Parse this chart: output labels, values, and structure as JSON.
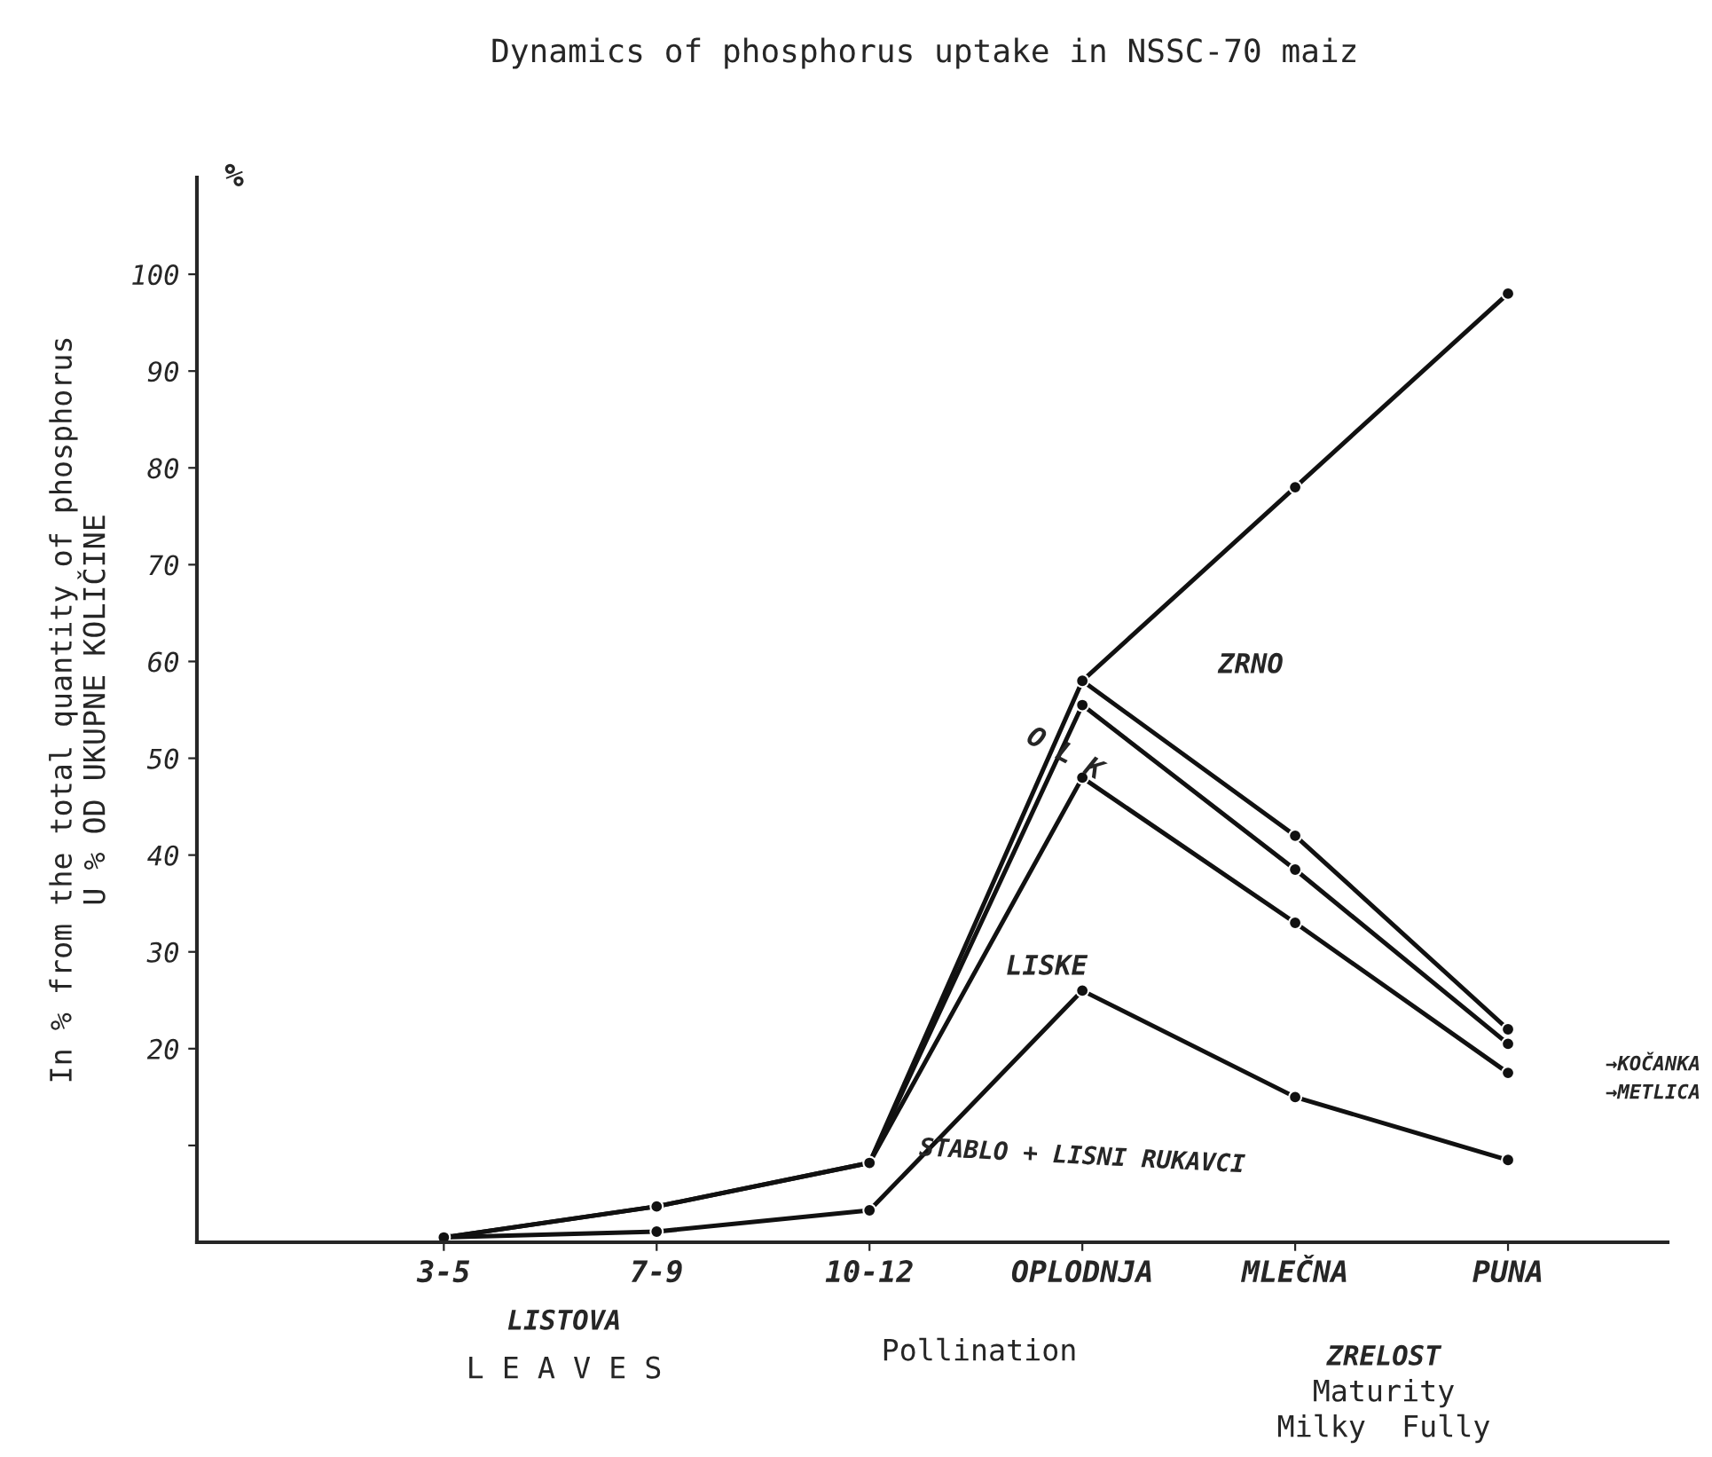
{
  "chart_data": {
    "type": "line",
    "title": "Dynamics of phosphorus uptake in NSSC-70 maiz",
    "ylabel": "In % from the total quantity of phosphorus\nU % OD UKUPNE KOLIČINE",
    "categories": [
      "3-5",
      "7-9",
      "10-12",
      "OPLODNJA",
      "MLEČNA",
      "PUNA"
    ],
    "series": [
      {
        "color": "#111111",
        "values": [
          null,
          null,
          null,
          58,
          78,
          98
        ]
      },
      {
        "color": "#111111",
        "values": [
          0.5,
          3.7,
          8.2,
          58,
          42,
          22
        ]
      },
      {
        "color": "#111111",
        "values": [
          null,
          null,
          8.2,
          55.5,
          38.5,
          20.5
        ]
      },
      {
        "color": "#111111",
        "values": [
          0.5,
          3.7,
          8.2,
          48,
          33,
          17.5
        ]
      },
      {
        "color": "#111111",
        "values": [
          0.5,
          1.1,
          3.3,
          26,
          15,
          8.5
        ]
      }
    ],
    "ylim": [
      0,
      110
    ],
    "yticks": [
      {
        "value": 10,
        "label": null
      },
      20,
      30,
      40,
      50,
      60,
      70,
      80,
      90,
      100
    ],
    "marker": "circle",
    "line_style": "solid",
    "grid": false,
    "legend": false,
    "annotations": [
      "%",
      "ZRNO",
      "O L K",
      "LISKE",
      "STABLO + LISNI RUKAVCI",
      "→KOČANKA",
      "→METLICA",
      "LISTOVA",
      "L E A V E S",
      "Pollination",
      "ZRELOST",
      "Maturity",
      "Milky  Fully"
    ]
  }
}
